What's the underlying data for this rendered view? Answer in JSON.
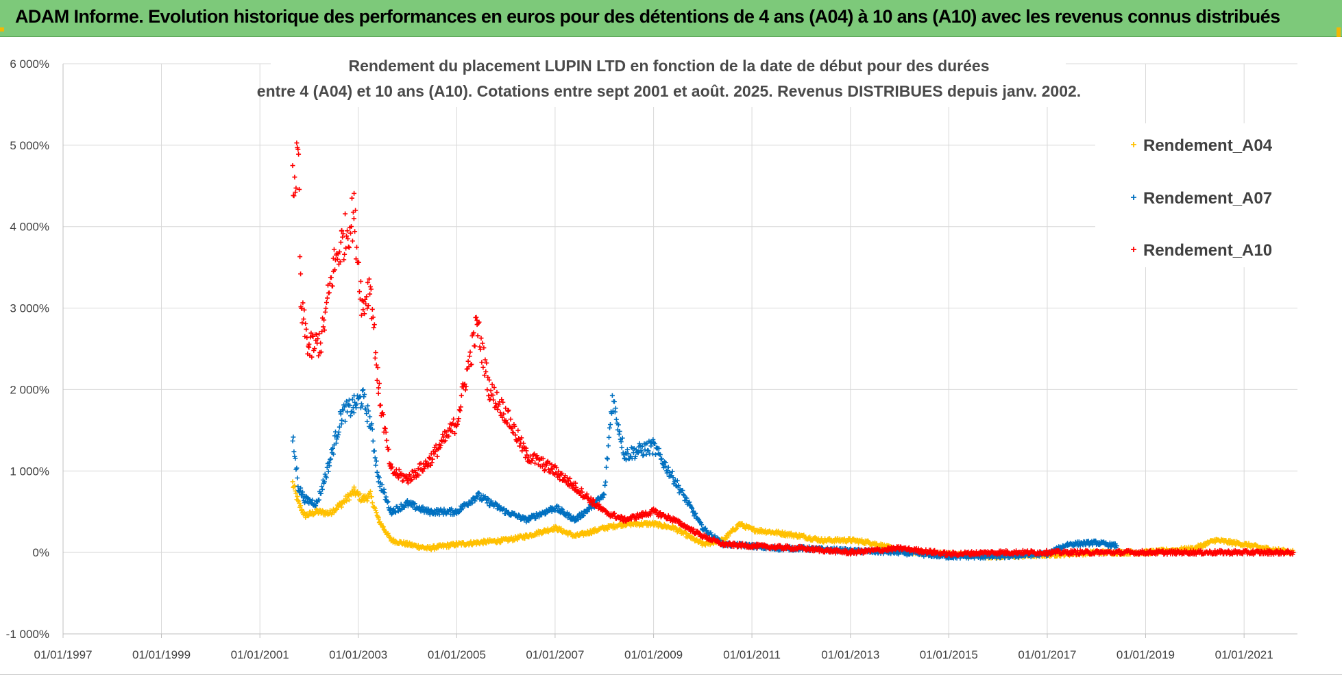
{
  "banner": {
    "text": "ADAM Informe. Evolution historique des performances en euros pour des détentions de 4 ans (A04) à 10 ans (A10) avec les revenus connus distribués",
    "color": "#7dc97a"
  },
  "chart_data": {
    "type": "scatter",
    "title_line1": "Rendement du placement LUPIN LTD en fonction de la date de début pour des durées",
    "title_line2": "entre 4 (A04) et 10 ans (A10).  Cotations entre sept 2001 et août. 2025.  Revenus DISTRIBUES depuis janv. 2002.",
    "x_range": [
      "1997-01-01",
      "2022-02-01"
    ],
    "x_ticks": [
      "01/01/1997",
      "01/01/1999",
      "01/01/2001",
      "01/01/2003",
      "01/01/2005",
      "01/01/2007",
      "01/01/2009",
      "01/01/2011",
      "01/01/2013",
      "01/01/2015",
      "01/01/2017",
      "01/01/2019",
      "01/01/2021"
    ],
    "y_range": [
      -1000,
      6000
    ],
    "y_ticks": [
      "-1 000%",
      "0%",
      "1 000%",
      "2 000%",
      "3 000%",
      "4 000%",
      "5 000%",
      "6 000%"
    ],
    "y_unit": "%",
    "grid": true,
    "legend_position": "right",
    "marker": "+",
    "series": [
      {
        "name": "Rendement_A04",
        "color": "#ffc000",
        "points": [
          [
            "2001-09-01",
            850
          ],
          [
            "2001-10-15",
            600
          ],
          [
            "2001-12-01",
            450
          ],
          [
            "2002-03-01",
            500
          ],
          [
            "2002-06-01",
            480
          ],
          [
            "2002-09-01",
            600
          ],
          [
            "2002-12-01",
            750
          ],
          [
            "2003-02-01",
            650
          ],
          [
            "2003-04-01",
            700
          ],
          [
            "2003-06-01",
            400
          ],
          [
            "2003-09-01",
            150
          ],
          [
            "2004-01-01",
            100
          ],
          [
            "2004-06-01",
            50
          ],
          [
            "2005-01-01",
            100
          ],
          [
            "2005-06-01",
            120
          ],
          [
            "2006-01-01",
            150
          ],
          [
            "2006-06-01",
            200
          ],
          [
            "2007-01-01",
            300
          ],
          [
            "2007-06-01",
            200
          ],
          [
            "2008-01-01",
            300
          ],
          [
            "2008-06-01",
            350
          ],
          [
            "2009-01-01",
            350
          ],
          [
            "2009-06-01",
            300
          ],
          [
            "2010-01-01",
            100
          ],
          [
            "2010-06-01",
            150
          ],
          [
            "2010-10-01",
            350
          ],
          [
            "2011-01-01",
            280
          ],
          [
            "2011-06-01",
            250
          ],
          [
            "2012-01-01",
            200
          ],
          [
            "2012-06-01",
            150
          ],
          [
            "2013-01-01",
            150
          ],
          [
            "2013-06-01",
            120
          ],
          [
            "2014-01-01",
            20
          ],
          [
            "2014-06-01",
            0
          ],
          [
            "2015-01-01",
            -20
          ],
          [
            "2016-01-01",
            -50
          ],
          [
            "2017-01-01",
            -30
          ],
          [
            "2018-01-01",
            0
          ],
          [
            "2019-01-01",
            0
          ],
          [
            "2020-01-01",
            50
          ],
          [
            "2020-06-01",
            150
          ],
          [
            "2021-01-01",
            100
          ],
          [
            "2021-06-01",
            50
          ],
          [
            "2022-01-01",
            0
          ]
        ]
      },
      {
        "name": "Rendement_A07",
        "color": "#0070c0",
        "points": [
          [
            "2001-09-01",
            1400
          ],
          [
            "2001-10-15",
            800
          ],
          [
            "2001-12-01",
            650
          ],
          [
            "2002-03-01",
            600
          ],
          [
            "2002-06-01",
            1100
          ],
          [
            "2002-09-01",
            1700
          ],
          [
            "2002-12-01",
            1800
          ],
          [
            "2003-02-01",
            1900
          ],
          [
            "2003-04-01",
            1600
          ],
          [
            "2003-06-01",
            900
          ],
          [
            "2003-09-01",
            500
          ],
          [
            "2004-01-01",
            600
          ],
          [
            "2004-06-01",
            500
          ],
          [
            "2005-01-01",
            500
          ],
          [
            "2005-06-01",
            700
          ],
          [
            "2006-01-01",
            500
          ],
          [
            "2006-06-01",
            400
          ],
          [
            "2007-01-01",
            550
          ],
          [
            "2007-06-01",
            400
          ],
          [
            "2008-01-01",
            700
          ],
          [
            "2008-03-01",
            1900
          ],
          [
            "2008-06-01",
            1200
          ],
          [
            "2009-01-01",
            1300
          ],
          [
            "2009-06-01",
            900
          ],
          [
            "2010-01-01",
            300
          ],
          [
            "2010-06-01",
            100
          ],
          [
            "2011-01-01",
            80
          ],
          [
            "2011-06-01",
            50
          ],
          [
            "2012-01-01",
            50
          ],
          [
            "2013-01-01",
            20
          ],
          [
            "2014-01-01",
            0
          ],
          [
            "2015-01-01",
            -50
          ],
          [
            "2016-01-01",
            -50
          ],
          [
            "2017-01-01",
            -20
          ],
          [
            "2017-06-01",
            100
          ],
          [
            "2018-01-01",
            120
          ],
          [
            "2018-06-01",
            80
          ]
        ]
      },
      {
        "name": "Rendement_A10",
        "color": "#ff0000",
        "points": [
          [
            "2001-09-01",
            4500
          ],
          [
            "2001-10-15",
            4800
          ],
          [
            "2001-11-01",
            3000
          ],
          [
            "2002-01-01",
            2500
          ],
          [
            "2002-04-01",
            2600
          ],
          [
            "2002-07-01",
            3500
          ],
          [
            "2002-09-01",
            3800
          ],
          [
            "2002-12-01",
            4150
          ],
          [
            "2003-02-01",
            3000
          ],
          [
            "2003-04-01",
            3300
          ],
          [
            "2003-06-01",
            2000
          ],
          [
            "2003-09-01",
            1000
          ],
          [
            "2004-01-01",
            900
          ],
          [
            "2004-06-01",
            1100
          ],
          [
            "2005-01-01",
            1600
          ],
          [
            "2005-06-01",
            2800
          ],
          [
            "2005-09-01",
            2000
          ],
          [
            "2006-01-01",
            1700
          ],
          [
            "2006-06-01",
            1200
          ],
          [
            "2007-01-01",
            1000
          ],
          [
            "2007-06-01",
            800
          ],
          [
            "2008-01-01",
            500
          ],
          [
            "2008-06-01",
            400
          ],
          [
            "2009-01-01",
            500
          ],
          [
            "2009-06-01",
            400
          ],
          [
            "2010-01-01",
            200
          ],
          [
            "2010-06-01",
            100
          ],
          [
            "2011-01-01",
            80
          ],
          [
            "2012-01-01",
            50
          ],
          [
            "2013-01-01",
            0
          ],
          [
            "2014-01-01",
            50
          ],
          [
            "2015-01-01",
            -20
          ],
          [
            "2016-01-01",
            0
          ],
          [
            "2017-01-01",
            0
          ],
          [
            "2018-01-01",
            0
          ],
          [
            "2019-01-01",
            0
          ],
          [
            "2020-01-01",
            0
          ],
          [
            "2021-01-01",
            0
          ],
          [
            "2022-01-01",
            0
          ]
        ]
      }
    ]
  }
}
